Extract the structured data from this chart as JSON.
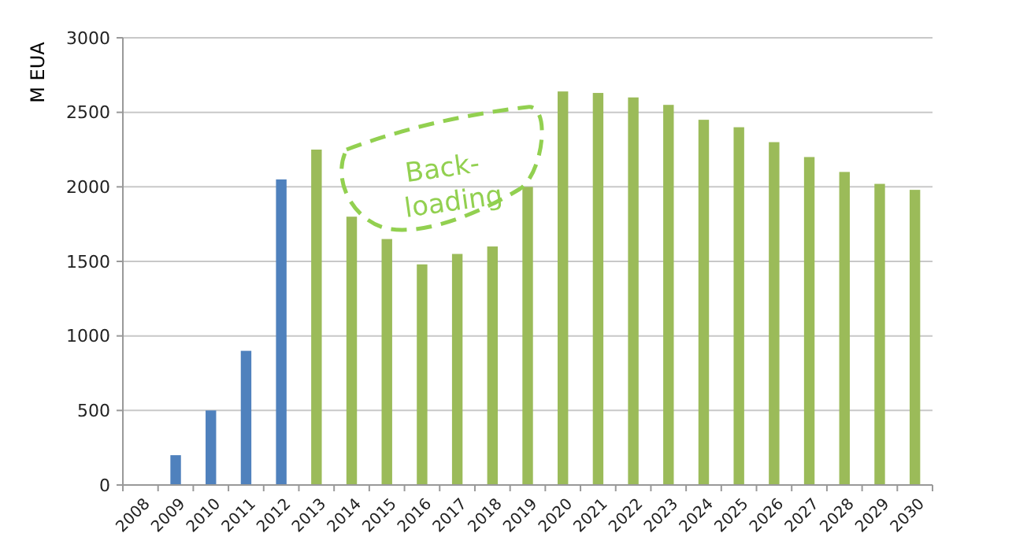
{
  "chart_data": {
    "type": "bar",
    "ylabel": "M EUA",
    "categories": [
      "2008",
      "2009",
      "2010",
      "2011",
      "2012",
      "2013",
      "2014",
      "2015",
      "2016",
      "2017",
      "2018",
      "2019",
      "2020",
      "2021",
      "2022",
      "2023",
      "2024",
      "2025",
      "2026",
      "2027",
      "2028",
      "2029",
      "2030"
    ],
    "values": [
      0,
      200,
      500,
      900,
      2050,
      2250,
      1800,
      1650,
      1480,
      1550,
      1600,
      2000,
      2640,
      2630,
      2600,
      2550,
      2450,
      2400,
      2300,
      2200,
      2100,
      2020,
      1980
    ],
    "colors": [
      "#4f81bd",
      "#4f81bd",
      "#4f81bd",
      "#4f81bd",
      "#4f81bd",
      "#9bbb59",
      "#9bbb59",
      "#9bbb59",
      "#9bbb59",
      "#9bbb59",
      "#9bbb59",
      "#9bbb59",
      "#9bbb59",
      "#9bbb59",
      "#9bbb59",
      "#9bbb59",
      "#9bbb59",
      "#9bbb59",
      "#9bbb59",
      "#9bbb59",
      "#9bbb59",
      "#9bbb59",
      "#9bbb59"
    ],
    "ylim": [
      0,
      3000
    ],
    "yticks": [
      0,
      500,
      1000,
      1500,
      2000,
      2500,
      3000
    ],
    "grid": "y",
    "annotations": [
      "Back-loading"
    ]
  }
}
